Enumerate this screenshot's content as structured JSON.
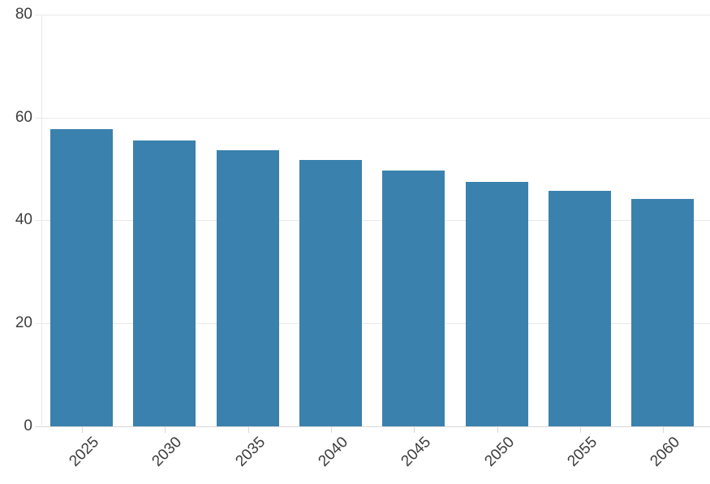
{
  "chart_data": {
    "type": "bar",
    "title": "",
    "xlabel": "",
    "ylabel": "",
    "categories": [
      "2025",
      "2030",
      "2035",
      "2040",
      "2045",
      "2050",
      "2055",
      "2060"
    ],
    "values": [
      57.8,
      55.6,
      53.7,
      51.8,
      49.8,
      47.6,
      45.8,
      44.2
    ],
    "ylim": [
      0,
      80
    ],
    "yticks": [
      0,
      20,
      40,
      60,
      80
    ],
    "grid": "horizontal",
    "legend": "none",
    "x_tick_label_rotation_deg": -45,
    "colors": {
      "bar": "#3a81ad",
      "gridline": "#e9e9e9",
      "axis_line": "#d9d9d9",
      "tick_label": "#3d3d3d",
      "background": "#ffffff"
    }
  }
}
